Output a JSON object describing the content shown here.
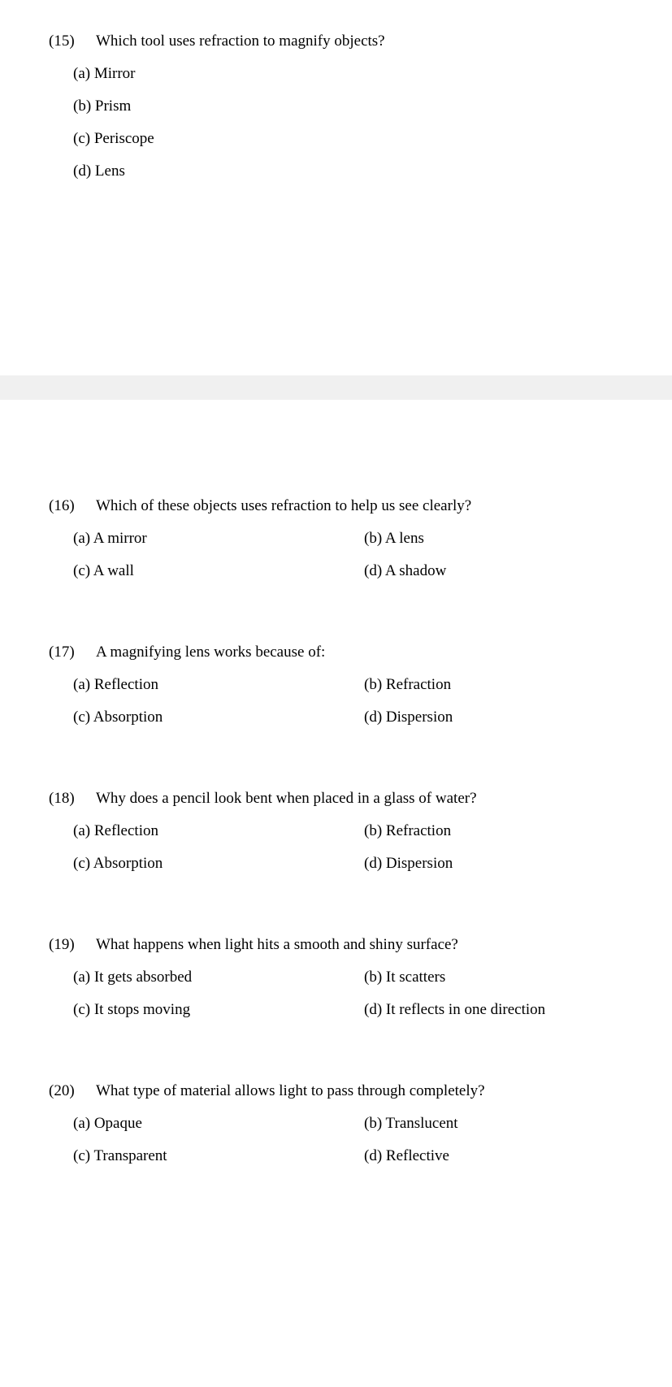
{
  "questions": [
    {
      "number": "(15)",
      "text": "Which tool uses refraction to magnify objects?",
      "layout": "single",
      "options": {
        "a": "(a) Mirror",
        "b": "(b) Prism",
        "c": "(c) Periscope",
        "d": "(d) Lens"
      }
    },
    {
      "number": "(16)",
      "text": "Which of these objects uses refraction to help us see clearly?",
      "layout": "double",
      "options": {
        "a": "(a) A mirror",
        "b": "(b) A lens",
        "c": "(c) A wall",
        "d": "(d) A shadow"
      }
    },
    {
      "number": "(17)",
      "text": "A magnifying lens works because of:",
      "layout": "double",
      "options": {
        "a": "(a) Reflection",
        "b": "(b) Refraction",
        "c": "(c) Absorption",
        "d": "(d) Dispersion"
      }
    },
    {
      "number": "(18)",
      "text": "Why does a pencil look bent when placed in a glass of water?",
      "layout": "double",
      "options": {
        "a": "(a) Reflection",
        "b": "(b) Refraction",
        "c": "(c) Absorption",
        "d": "(d) Dispersion"
      }
    },
    {
      "number": "(19)",
      "text": "What happens when light hits a smooth and shiny surface?",
      "layout": "double",
      "options": {
        "a": "(a) It gets absorbed",
        "b": "(b) It scatters",
        "c": "(c) It stops moving",
        "d": "(d) It reflects in one direction"
      }
    },
    {
      "number": "(20)",
      "text": "What type of material allows light to pass through completely?",
      "layout": "double",
      "options": {
        "a": "(a) Opaque",
        "b": "(b) Translucent",
        "c": "(c) Transparent",
        "d": "(d) Reflective"
      }
    }
  ]
}
